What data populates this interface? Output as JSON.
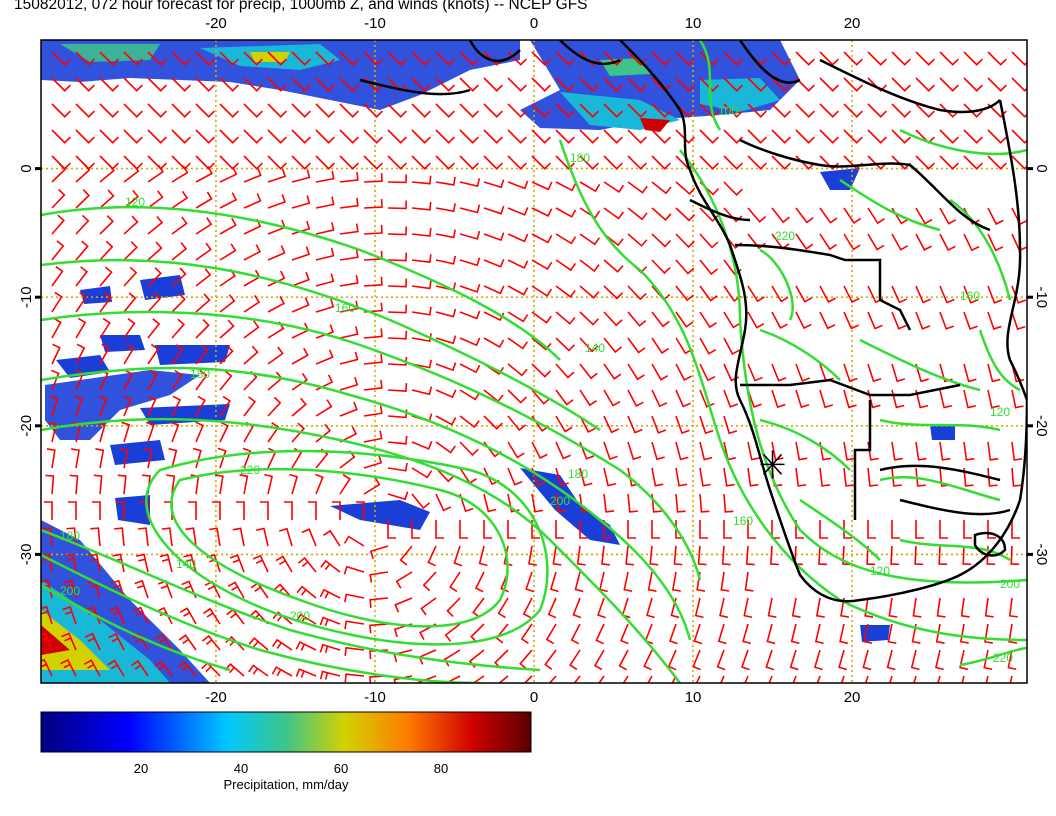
{
  "title": "15082012, 072 hour forecast for precip, 1000mb Z, and winds (knots) -- NCEP GFS",
  "map": {
    "lon_min": -31,
    "lon_max": 31,
    "lat_min": -40,
    "lat_max": 10,
    "lon_ticks": [
      "-20",
      "-10",
      "0",
      "10",
      "20"
    ],
    "lat_ticks": [
      "0",
      "-10",
      "-20",
      "-30"
    ],
    "grid_lon": [
      -20,
      -10,
      0,
      10,
      20
    ],
    "grid_lat": [
      0,
      -10,
      -20,
      -30
    ],
    "marker_lon": 15,
    "marker_lat": -23,
    "colors": {
      "precip_high": "#8b0000",
      "contour": "#33dd33",
      "wind_barb": "#ff0000",
      "grid": "#d4aa00",
      "coast": "#000000"
    },
    "contour_labels": [
      "120",
      "160",
      "180",
      "220",
      "200",
      "140",
      "180",
      "160",
      "200",
      "180",
      "200",
      "220",
      "120",
      "160",
      "140",
      "100",
      "180",
      "120",
      "200",
      "220"
    ]
  },
  "colorbar": {
    "label": "Precipitation, mm/day",
    "ticks": [
      "20",
      "40",
      "60",
      "80"
    ],
    "min": 0,
    "max": 98
  }
}
